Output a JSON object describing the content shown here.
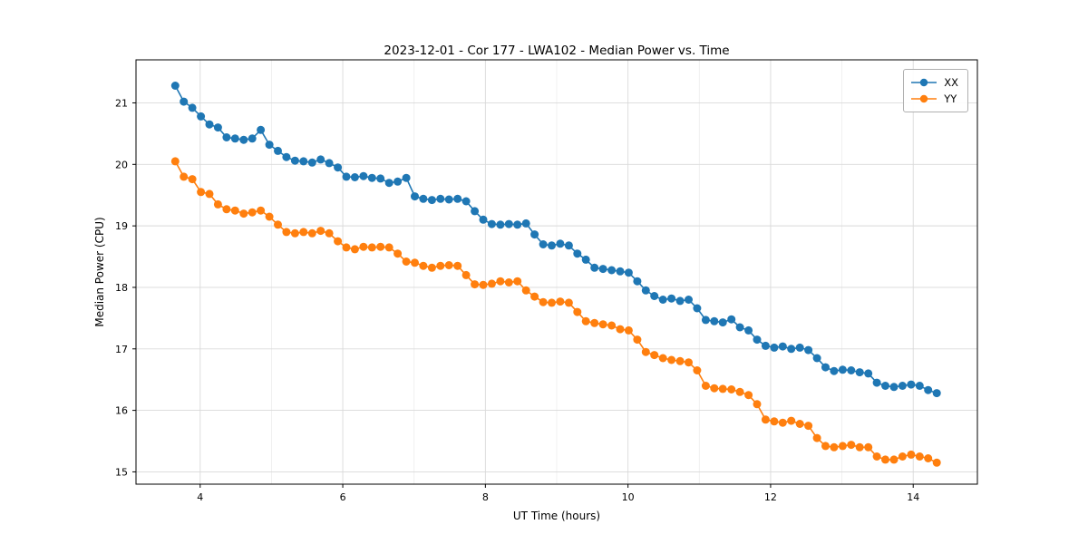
{
  "window": {
    "kind": "matplotlib-figure"
  },
  "chart_data": {
    "type": "line",
    "title": "2023-12-01 - Cor 177 - LWA102 - Median Power vs. Time",
    "xlabel": "UT Time (hours)",
    "ylabel": "Median Power (CPU)",
    "xlim": [
      3.1,
      14.9
    ],
    "ylim": [
      14.8,
      21.7
    ],
    "xticks": [
      4,
      6,
      8,
      10,
      12,
      14
    ],
    "yticks": [
      15,
      16,
      17,
      18,
      19,
      20,
      21
    ],
    "grid": true,
    "legend_position": "upper right",
    "marker": "circle",
    "x": [
      3.65,
      3.77,
      3.89,
      4.01,
      4.13,
      4.25,
      4.37,
      4.49,
      4.61,
      4.73,
      4.85,
      4.97,
      5.09,
      5.21,
      5.33,
      5.45,
      5.57,
      5.69,
      5.81,
      5.93,
      6.05,
      6.17,
      6.29,
      6.41,
      6.53,
      6.65,
      6.77,
      6.89,
      7.01,
      7.13,
      7.25,
      7.37,
      7.49,
      7.61,
      7.73,
      7.85,
      7.97,
      8.09,
      8.21,
      8.33,
      8.45,
      8.57,
      8.69,
      8.81,
      8.93,
      9.05,
      9.17,
      9.29,
      9.41,
      9.53,
      9.65,
      9.77,
      9.89,
      10.01,
      10.13,
      10.25,
      10.37,
      10.49,
      10.61,
      10.73,
      10.85,
      10.97,
      11.09,
      11.21,
      11.33,
      11.45,
      11.57,
      11.69,
      11.81,
      11.93,
      12.05,
      12.17,
      12.29,
      12.41,
      12.53,
      12.65,
      12.77,
      12.89,
      13.01,
      13.13,
      13.25,
      13.37,
      13.49,
      13.61,
      13.73,
      13.85,
      13.97,
      14.09,
      14.21,
      14.33
    ],
    "series": [
      {
        "name": "XX",
        "color": "#1f77b4",
        "values": [
          21.28,
          21.02,
          20.92,
          20.78,
          20.65,
          20.6,
          20.44,
          20.42,
          20.4,
          20.42,
          20.56,
          20.32,
          20.22,
          20.12,
          20.06,
          20.05,
          20.03,
          20.08,
          20.02,
          19.95,
          19.8,
          19.79,
          19.81,
          19.78,
          19.77,
          19.7,
          19.72,
          19.78,
          19.48,
          19.44,
          19.42,
          19.44,
          19.43,
          19.44,
          19.4,
          19.24,
          19.1,
          19.03,
          19.02,
          19.03,
          19.02,
          19.04,
          18.86,
          18.7,
          18.68,
          18.71,
          18.68,
          18.55,
          18.45,
          18.32,
          18.3,
          18.28,
          18.26,
          18.24,
          18.1,
          17.95,
          17.86,
          17.8,
          17.82,
          17.78,
          17.8,
          17.66,
          17.47,
          17.45,
          17.43,
          17.48,
          17.35,
          17.3,
          17.15,
          17.05,
          17.02,
          17.04,
          17.0,
          17.02,
          16.98,
          16.85,
          16.7,
          16.64,
          16.66,
          16.65,
          16.62,
          16.6,
          16.45,
          16.4,
          16.38,
          16.4,
          16.42,
          16.4,
          16.33,
          16.28
        ]
      },
      {
        "name": "YY",
        "color": "#ff7f0e",
        "values": [
          20.05,
          19.8,
          19.76,
          19.55,
          19.52,
          19.35,
          19.27,
          19.25,
          19.2,
          19.22,
          19.25,
          19.15,
          19.02,
          18.9,
          18.88,
          18.9,
          18.88,
          18.92,
          18.88,
          18.75,
          18.65,
          18.62,
          18.66,
          18.65,
          18.66,
          18.65,
          18.55,
          18.42,
          18.4,
          18.35,
          18.32,
          18.35,
          18.36,
          18.35,
          18.2,
          18.05,
          18.04,
          18.06,
          18.1,
          18.08,
          18.1,
          17.95,
          17.85,
          17.76,
          17.75,
          17.77,
          17.75,
          17.6,
          17.45,
          17.42,
          17.4,
          17.38,
          17.32,
          17.3,
          17.15,
          16.95,
          16.9,
          16.85,
          16.82,
          16.8,
          16.78,
          16.65,
          16.4,
          16.36,
          16.35,
          16.34,
          16.3,
          16.25,
          16.1,
          15.85,
          15.82,
          15.8,
          15.83,
          15.78,
          15.75,
          15.55,
          15.42,
          15.4,
          15.42,
          15.44,
          15.4,
          15.4,
          15.25,
          15.2,
          15.2,
          15.25,
          15.28,
          15.25,
          15.22,
          15.15
        ]
      }
    ],
    "style": {
      "grid_major_color": "#d9d9d9",
      "grid_minor_color": "#ededed",
      "spine_color": "#000000",
      "tick_label_size": 11,
      "line_width": 1.6,
      "marker_radius": 4.5
    }
  }
}
